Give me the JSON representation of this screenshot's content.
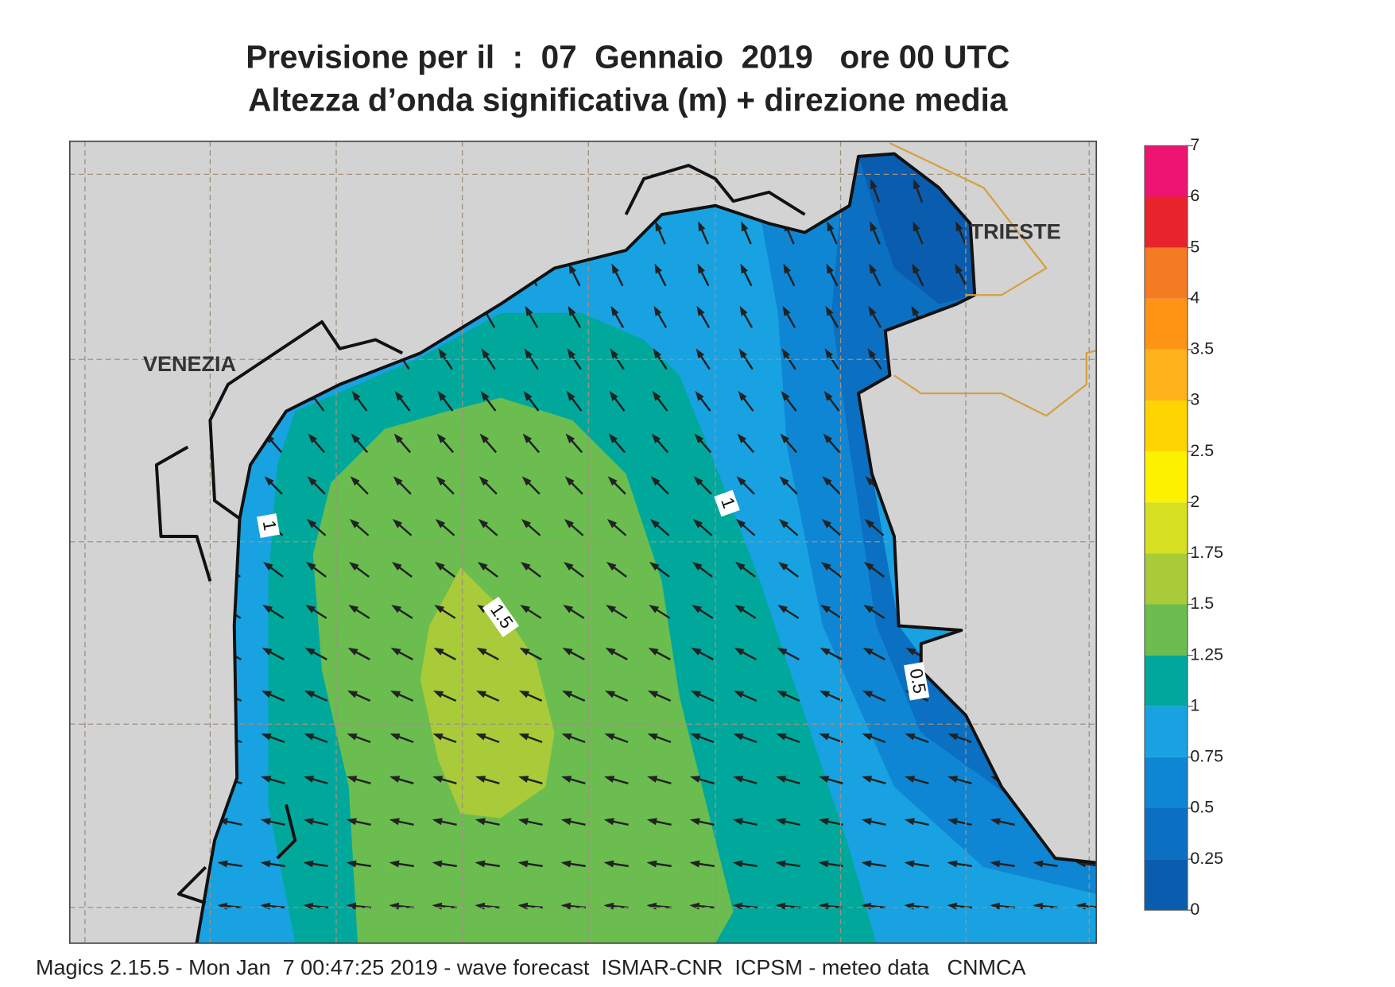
{
  "title": "Previsione per il  :  07  Gennaio  2019   ore 00 UTC",
  "subtitle": "Altezza d’onda significativa (m) + direzione media",
  "places": [
    "VENEZIA",
    "TRIESTE"
  ],
  "contour_labels": [
    "1",
    "1",
    "1.5",
    "0.5"
  ],
  "colorbar": {
    "ticks": [
      0,
      0.25,
      0.5,
      0.75,
      1,
      1.25,
      1.5,
      1.75,
      2,
      2.5,
      3,
      3.5,
      4,
      5,
      6,
      7
    ],
    "colors": [
      "#0a5cae",
      "#0b6fc2",
      "#0f86d4",
      "#18a2e2",
      "#00a89c",
      "#6bbd4f",
      "#a9cb39",
      "#d6df22",
      "#fff200",
      "#ffd400",
      "#ffb21c",
      "#ff9414",
      "#f57b22",
      "#e8232b",
      "#ee1472"
    ]
  },
  "footer": "Magics 2.15.5 - Mon Jan  7 00:47:25 2019 - wave forecast  ISMAR-CNR  ICPSM - meteo data   CNMCA"
}
